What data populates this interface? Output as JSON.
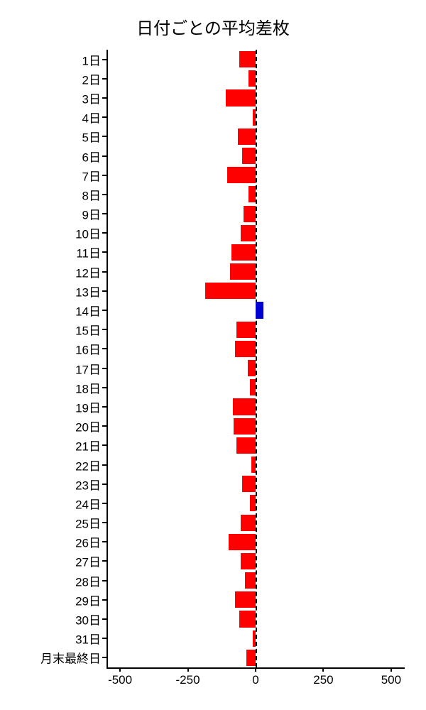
{
  "chart": {
    "type": "bar",
    "orientation": "horizontal",
    "title": "日付ごとの平均差枚",
    "title_fontsize": 24,
    "background_color": "#ffffff",
    "positive_color": "#0000d0",
    "negative_color": "#ff0000",
    "axis_color": "#000000",
    "zero_line_dash": "2,4",
    "label_fontsize": 17,
    "xlim": [
      -550,
      550
    ],
    "xticks": [
      -500,
      -250,
      0,
      250,
      500
    ],
    "xtick_labels": [
      "-500",
      "-250",
      "0",
      "250",
      "500"
    ],
    "bar_height_ratio": 0.85,
    "categories": [
      "1日",
      "2日",
      "3日",
      "4日",
      "5日",
      "6日",
      "7日",
      "8日",
      "9日",
      "10日",
      "11日",
      "12日",
      "13日",
      "14日",
      "15日",
      "16日",
      "17日",
      "18日",
      "19日",
      "20日",
      "21日",
      "22日",
      "23日",
      "24日",
      "25日",
      "26日",
      "27日",
      "28日",
      "29日",
      "30日",
      "31日",
      "月末最終日"
    ],
    "values": [
      -60,
      -25,
      -110,
      -10,
      -65,
      -50,
      -105,
      -25,
      -45,
      -55,
      -90,
      -95,
      -185,
      30,
      -70,
      -75,
      -30,
      -20,
      -85,
      -80,
      -70,
      -15,
      -50,
      -20,
      -55,
      -100,
      -55,
      -40,
      -75,
      -60,
      -10,
      -35
    ]
  }
}
